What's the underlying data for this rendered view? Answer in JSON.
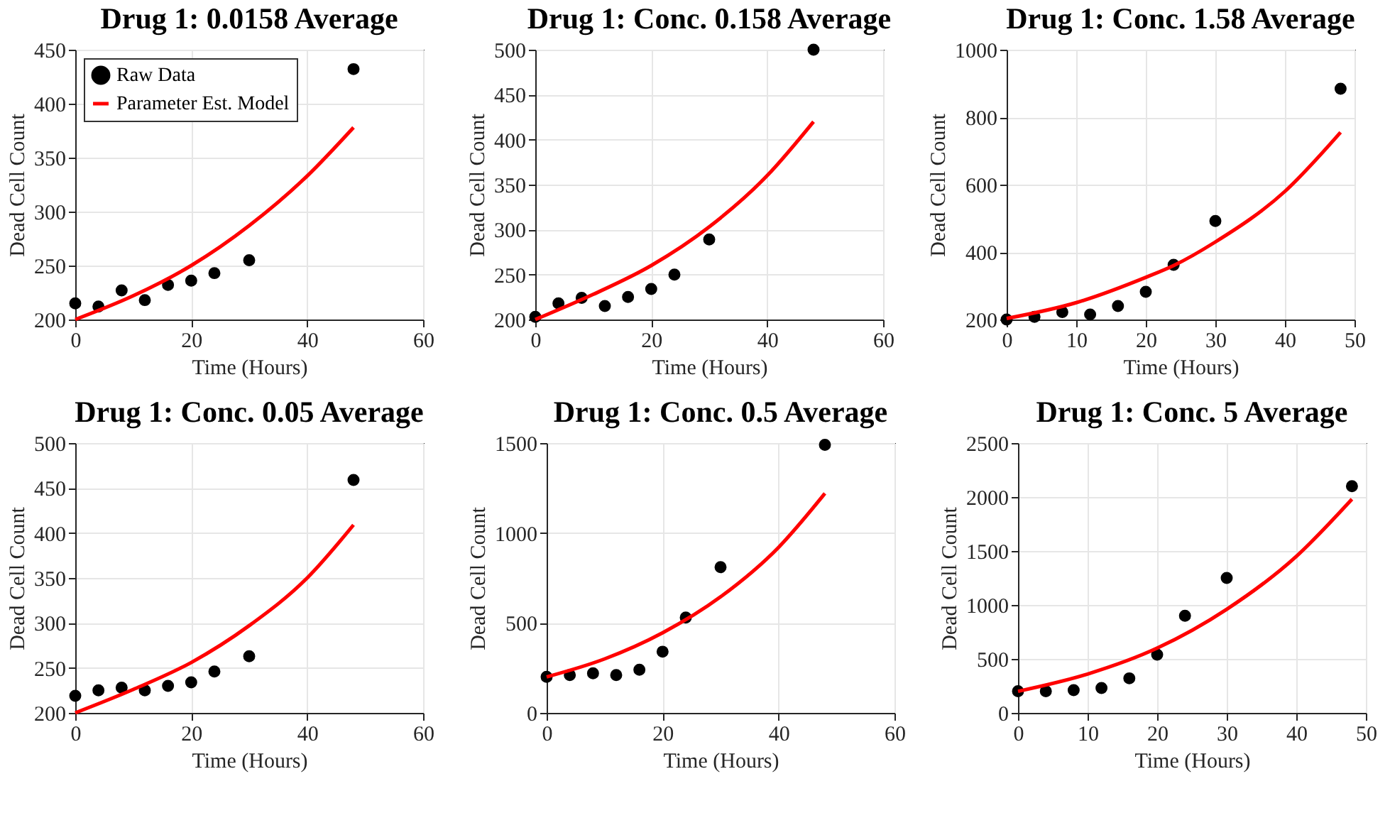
{
  "chart_data": [
    {
      "type": "scatter",
      "title": "Drug 1: 0.0158 Average",
      "xlabel": "Time (Hours)",
      "ylabel": "Dead Cell Count",
      "xlim": [
        0,
        60
      ],
      "xticks": [
        0,
        20,
        40,
        60
      ],
      "ylim": [
        200,
        450
      ],
      "yticks": [
        200,
        250,
        300,
        350,
        400,
        450
      ],
      "grid": true,
      "legend": "top left",
      "series": [
        {
          "name": "Raw Data",
          "marker": "circle",
          "color": "#000000",
          "x": [
            0,
            4,
            8,
            12,
            16,
            20,
            24,
            30,
            48
          ],
          "values": [
            215,
            212,
            227,
            218,
            232,
            236,
            243,
            255,
            432
          ]
        },
        {
          "name": "Parameter Est. Model",
          "type": "line",
          "color": "#ff0000",
          "x": [
            0,
            10,
            20,
            30,
            40,
            48
          ],
          "values": [
            200,
            222,
            250,
            287,
            333,
            378
          ]
        }
      ]
    },
    {
      "type": "scatter",
      "title": "Drug 1: Conc. 0.158 Average",
      "xlabel": "Time (Hours)",
      "ylabel": "Dead Cell Count",
      "xlim": [
        0,
        60
      ],
      "xticks": [
        0,
        20,
        40,
        60
      ],
      "ylim": [
        200,
        500
      ],
      "yticks": [
        200,
        250,
        300,
        350,
        400,
        450,
        500
      ],
      "grid": true,
      "series": [
        {
          "marker": "circle",
          "color": "#000000",
          "x": [
            0,
            4,
            8,
            12,
            16,
            20,
            24,
            30,
            48
          ],
          "values": [
            203,
            218,
            224,
            215,
            225,
            234,
            250,
            289,
            500
          ]
        },
        {
          "type": "line",
          "color": "#ff0000",
          "x": [
            0,
            10,
            20,
            30,
            40,
            48
          ],
          "values": [
            200,
            228,
            260,
            303,
            360,
            420
          ]
        }
      ]
    },
    {
      "type": "scatter",
      "title": "Drug 1: Conc. 1.58 Average",
      "xlabel": "Time (Hours)",
      "ylabel": "Dead Cell Count",
      "xlim": [
        0,
        50
      ],
      "xticks": [
        0,
        10,
        20,
        30,
        40,
        50
      ],
      "ylim": [
        200,
        1000
      ],
      "yticks": [
        200,
        400,
        600,
        800,
        1000
      ],
      "grid": true,
      "series": [
        {
          "marker": "circle",
          "color": "#000000",
          "x": [
            0,
            4,
            8,
            12,
            16,
            20,
            24,
            30,
            48
          ],
          "values": [
            200,
            208,
            222,
            215,
            240,
            282,
            362,
            492,
            884
          ]
        },
        {
          "type": "line",
          "color": "#ff0000",
          "x": [
            0,
            10,
            20,
            24,
            30,
            40,
            48
          ],
          "values": [
            203,
            250,
            325,
            360,
            430,
            580,
            755
          ]
        }
      ]
    },
    {
      "type": "scatter",
      "title": "Drug 1: Conc. 0.05 Average",
      "xlabel": "Time (Hours)",
      "ylabel": "Dead Cell Count",
      "xlim": [
        0,
        60
      ],
      "xticks": [
        0,
        20,
        40,
        60
      ],
      "ylim": [
        200,
        500
      ],
      "yticks": [
        200,
        250,
        300,
        350,
        400,
        450,
        500
      ],
      "grid": true,
      "series": [
        {
          "marker": "circle",
          "color": "#000000",
          "x": [
            0,
            4,
            8,
            12,
            16,
            20,
            24,
            30,
            48
          ],
          "values": [
            219,
            225,
            228,
            225,
            230,
            234,
            246,
            263,
            459
          ]
        },
        {
          "type": "line",
          "color": "#ff0000",
          "x": [
            0,
            10,
            20,
            30,
            40,
            48
          ],
          "values": [
            200,
            226,
            256,
            297,
            350,
            409
          ]
        }
      ]
    },
    {
      "type": "scatter",
      "title": "Drug 1: Conc. 0.5 Average",
      "xlabel": "Time (Hours)",
      "ylabel": "Dead Cell Count",
      "xlim": [
        0,
        60
      ],
      "xticks": [
        0,
        20,
        40,
        60
      ],
      "ylim": [
        0,
        1500
      ],
      "yticks": [
        0,
        500,
        1000,
        1500
      ],
      "grid": true,
      "series": [
        {
          "marker": "circle",
          "color": "#000000",
          "x": [
            0,
            4,
            8,
            12,
            16,
            20,
            24,
            30,
            48
          ],
          "values": [
            200,
            210,
            220,
            210,
            240,
            340,
            530,
            810,
            1490
          ]
        },
        {
          "type": "line",
          "color": "#ff0000",
          "x": [
            0,
            10,
            20,
            30,
            40,
            48
          ],
          "values": [
            200,
            300,
            445,
            645,
            920,
            1220
          ]
        }
      ]
    },
    {
      "type": "scatter",
      "title": "Drug 1: Conc. 5 Average",
      "xlabel": "Time (Hours)",
      "ylabel": "Dead Cell Count",
      "xlim": [
        0,
        50
      ],
      "xticks": [
        0,
        10,
        20,
        30,
        40,
        50
      ],
      "ylim": [
        0,
        2500
      ],
      "yticks": [
        0,
        500,
        1000,
        1500,
        2000,
        2500
      ],
      "grid": true,
      "series": [
        {
          "marker": "circle",
          "color": "#000000",
          "x": [
            0,
            4,
            8,
            12,
            16,
            20,
            24,
            30,
            48
          ],
          "values": [
            200,
            200,
            210,
            230,
            320,
            540,
            900,
            1250,
            2100
          ]
        },
        {
          "type": "line",
          "color": "#ff0000",
          "x": [
            0,
            10,
            20,
            30,
            40,
            48
          ],
          "values": [
            200,
            360,
            600,
            960,
            1450,
            1980
          ]
        }
      ]
    }
  ]
}
